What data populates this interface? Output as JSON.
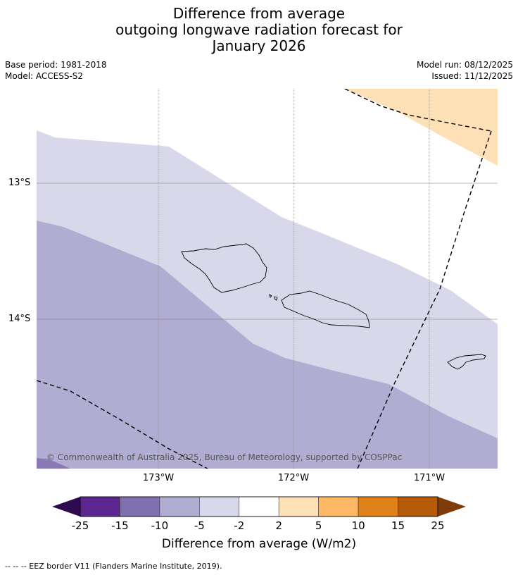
{
  "title": {
    "line1": "Difference from average",
    "line2": "outgoing longwave radiation forecast for",
    "line3": "January 2026"
  },
  "meta": {
    "base_period": "Base period: 1981-2018",
    "model": "Model: ACCESS-S2",
    "model_run": "Model run: 08/12/2025",
    "issued": "Issued: 11/12/2025"
  },
  "map": {
    "lat_labels": [
      "13°S",
      "14°S"
    ],
    "lon_labels": [
      "173°W",
      "172°W",
      "171°W"
    ],
    "credit": "© Commonwealth of Australia 2025, Bureau of Meteorology, supported by COSPPac",
    "colors": {
      "light_lavender": "#d8d8ea",
      "mid_lavender": "#b1acd2",
      "dark_lavender": "#8878b4",
      "light_orange": "#fde0b6",
      "coast": "#000000"
    }
  },
  "colorbar": {
    "ticks": [
      "-25",
      "-15",
      "-10",
      "-5",
      "-2",
      "2",
      "5",
      "10",
      "15",
      "25"
    ],
    "colors": [
      "#5c2690",
      "#8070b0",
      "#b1acd2",
      "#d8d8ea",
      "#ffffff",
      "#fde0b6",
      "#fdb866",
      "#e0821a",
      "#b45a08"
    ],
    "low_extend_color": "#2e0a4e",
    "high_extend_color": "#7f3b08",
    "label": "Difference from average (W/m2)"
  },
  "footnote": "--  --  -- EEZ border V11 (Flanders Marine Institute, 2019)."
}
